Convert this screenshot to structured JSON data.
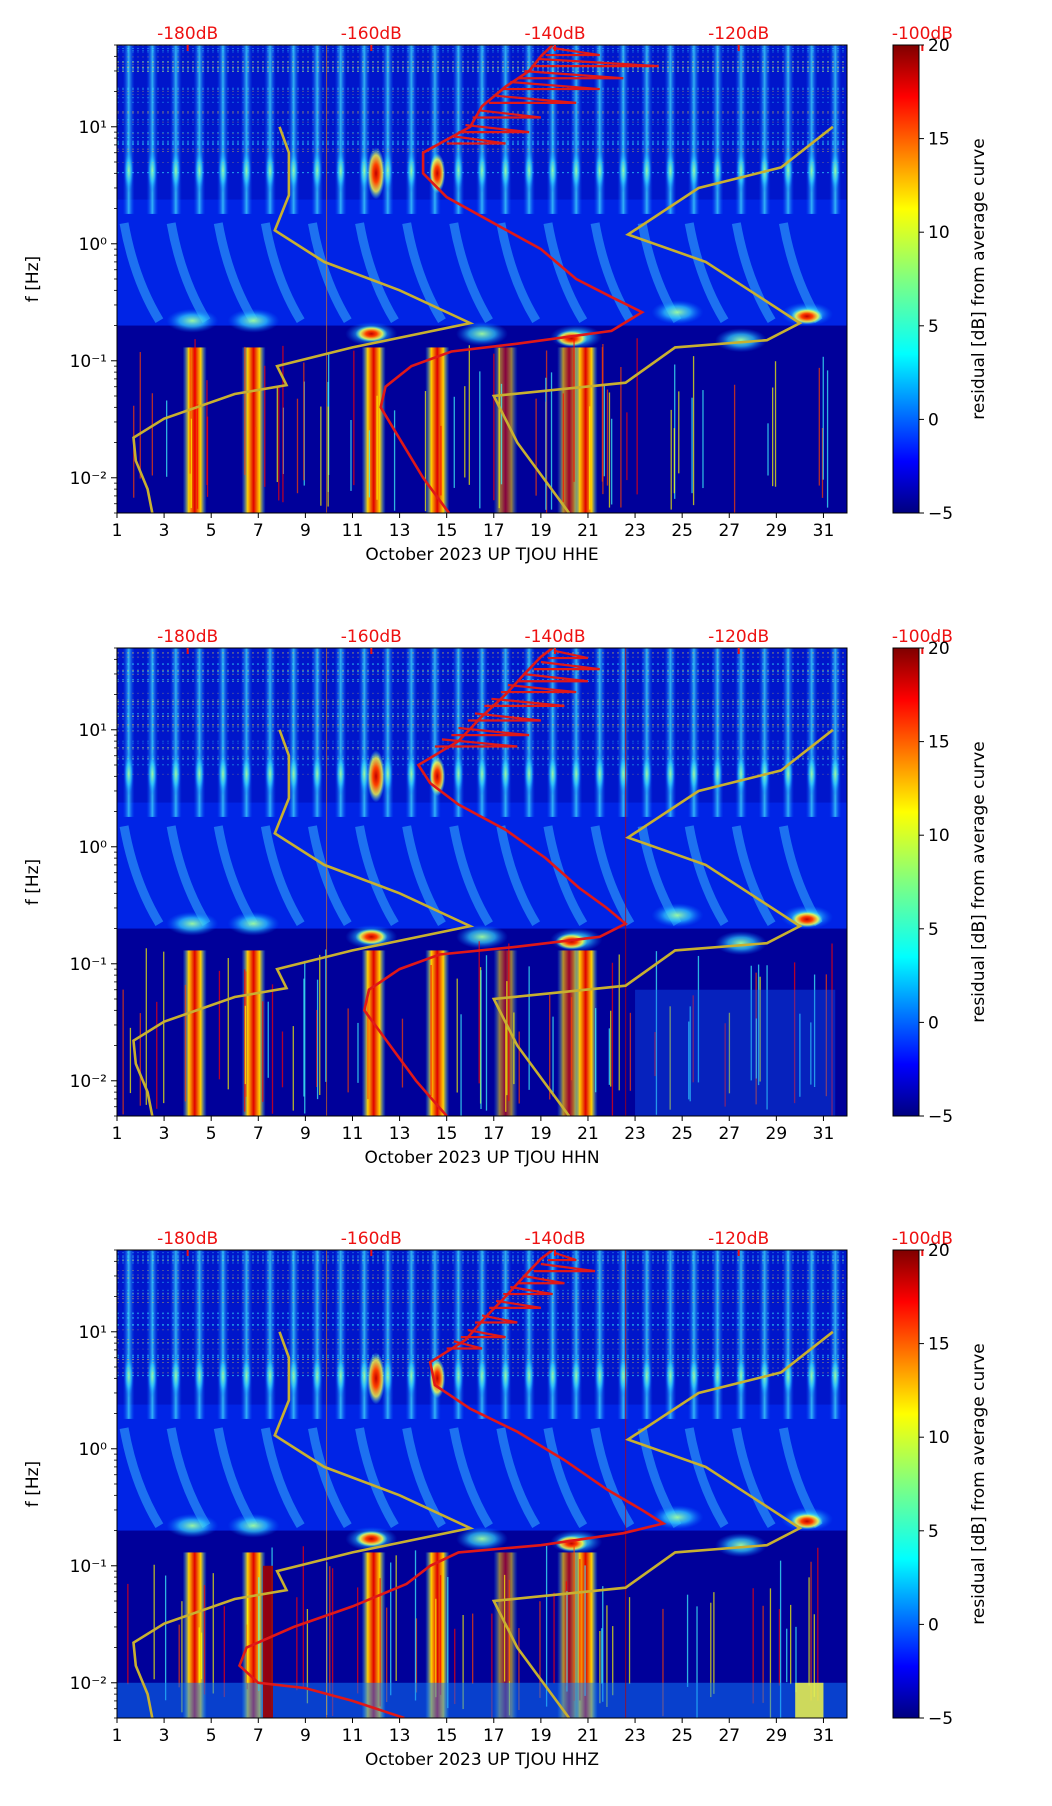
{
  "colors": {
    "db_label": "#ee1111",
    "peterson_curve": "#c8b030",
    "average_curve": "#e01818",
    "colormap": [
      "#00007f",
      "#0000ff",
      "#0080ff",
      "#00ffff",
      "#80ff80",
      "#ffff00",
      "#ff8000",
      "#ff0000",
      "#7f0000"
    ]
  },
  "chart_data": [
    {
      "type": "heatmap",
      "title": "",
      "xlabel": "October 2023 UP TJOU  HHE",
      "ylabel": "f [Hz]",
      "colorbar_label": "residual [dB] from average curve",
      "x_ticks": [
        "1",
        "3",
        "5",
        "7",
        "9",
        "11",
        "13",
        "15",
        "17",
        "19",
        "21",
        "23",
        "25",
        "27",
        "29",
        "31"
      ],
      "y_ticks": [
        "10⁻²",
        "10⁻¹",
        "10⁰",
        "10¹"
      ],
      "colorbar_ticks": [
        "20",
        "15",
        "10",
        "5",
        "0",
        "−5"
      ],
      "db_labels": [
        "-180dB",
        "-160dB",
        "-140dB",
        "-120dB",
        "-100dB"
      ],
      "xlim": [
        1,
        32
      ],
      "ylim": [
        0.005,
        50
      ],
      "clim": [
        -5,
        20
      ],
      "peterson_curve": [
        [
          2.5,
          0.005
        ],
        [
          2.3,
          0.008
        ],
        [
          1.8,
          0.014
        ],
        [
          1.7,
          0.022
        ],
        [
          3.0,
          0.032
        ],
        [
          6.0,
          0.052
        ],
        [
          8.2,
          0.062
        ],
        [
          7.8,
          0.09
        ],
        [
          11.0,
          0.13
        ],
        [
          16.0,
          0.21
        ],
        [
          13.0,
          0.4
        ],
        [
          9.8,
          0.7
        ],
        [
          7.7,
          1.3
        ],
        [
          8.3,
          2.6
        ],
        [
          8.3,
          6.0
        ],
        [
          7.9,
          10.0
        ]
      ],
      "peterson_curve_right": [
        [
          20.2,
          0.005
        ],
        [
          18.0,
          0.02
        ],
        [
          17.0,
          0.05
        ],
        [
          22.6,
          0.065
        ],
        [
          24.7,
          0.13
        ],
        [
          28.6,
          0.15
        ],
        [
          30.0,
          0.21
        ],
        [
          26.0,
          0.7
        ],
        [
          22.7,
          1.2
        ],
        [
          25.7,
          3.0
        ],
        [
          29.2,
          4.5
        ],
        [
          31.4,
          10.0
        ]
      ],
      "average_curve": [
        [
          15.1,
          0.005
        ],
        [
          14.0,
          0.01
        ],
        [
          13.1,
          0.02
        ],
        [
          12.2,
          0.04
        ],
        [
          12.4,
          0.06
        ],
        [
          13.5,
          0.09
        ],
        [
          15.2,
          0.12
        ],
        [
          18.0,
          0.14
        ],
        [
          22.0,
          0.18
        ],
        [
          23.3,
          0.26
        ],
        [
          22.0,
          0.35
        ],
        [
          20.5,
          0.5
        ],
        [
          19.0,
          0.9
        ],
        [
          17.0,
          1.5
        ],
        [
          15.0,
          2.5
        ],
        [
          14.0,
          4.0
        ],
        [
          14.0,
          6.0
        ],
        [
          16.0,
          10.0
        ],
        [
          16.5,
          15.0
        ],
        [
          17.5,
          22.0
        ],
        [
          18.5,
          30.0
        ],
        [
          19.0,
          40.0
        ],
        [
          19.5,
          50.0
        ]
      ],
      "average_curve_spikes": [
        [
          15,
          7.2,
          17.5
        ],
        [
          15.5,
          9.0,
          18.5
        ],
        [
          16.1,
          12.0,
          19.0
        ],
        [
          16.8,
          16.0,
          20.5
        ],
        [
          17.4,
          21.0,
          21.5
        ],
        [
          18.0,
          26.0,
          22.5
        ],
        [
          18.6,
          33.0,
          24.0
        ],
        [
          19.2,
          41.0,
          21.5
        ]
      ]
    },
    {
      "type": "heatmap",
      "title": "",
      "xlabel": "October 2023 UP TJOU  HHN",
      "ylabel": "f [Hz]",
      "colorbar_label": "residual [dB] from average curve",
      "x_ticks": [
        "1",
        "3",
        "5",
        "7",
        "9",
        "11",
        "13",
        "15",
        "17",
        "19",
        "21",
        "23",
        "25",
        "27",
        "29",
        "31"
      ],
      "y_ticks": [
        "10⁻²",
        "10⁻¹",
        "10⁰",
        "10¹"
      ],
      "colorbar_ticks": [
        "20",
        "15",
        "10",
        "5",
        "0",
        "−5"
      ],
      "db_labels": [
        "-180dB",
        "-160dB",
        "-140dB",
        "-120dB",
        "-100dB"
      ],
      "xlim": [
        1,
        32
      ],
      "ylim": [
        0.005,
        50
      ],
      "clim": [
        -5,
        20
      ],
      "peterson_curve": [
        [
          2.5,
          0.005
        ],
        [
          2.3,
          0.008
        ],
        [
          1.8,
          0.014
        ],
        [
          1.7,
          0.022
        ],
        [
          3.0,
          0.032
        ],
        [
          6.0,
          0.052
        ],
        [
          8.2,
          0.062
        ],
        [
          7.8,
          0.09
        ],
        [
          11.0,
          0.13
        ],
        [
          16.0,
          0.21
        ],
        [
          13.0,
          0.4
        ],
        [
          9.8,
          0.7
        ],
        [
          7.7,
          1.3
        ],
        [
          8.3,
          2.6
        ],
        [
          8.3,
          6.0
        ],
        [
          7.9,
          10.0
        ]
      ],
      "peterson_curve_right": [
        [
          20.2,
          0.005
        ],
        [
          18.0,
          0.02
        ],
        [
          17.0,
          0.05
        ],
        [
          22.6,
          0.065
        ],
        [
          24.7,
          0.13
        ],
        [
          28.6,
          0.15
        ],
        [
          30.0,
          0.21
        ],
        [
          26.0,
          0.7
        ],
        [
          22.7,
          1.2
        ],
        [
          25.7,
          3.0
        ],
        [
          29.2,
          4.5
        ],
        [
          31.4,
          10.0
        ]
      ],
      "average_curve": [
        [
          15.0,
          0.005
        ],
        [
          13.7,
          0.01
        ],
        [
          12.6,
          0.02
        ],
        [
          11.5,
          0.04
        ],
        [
          11.7,
          0.06
        ],
        [
          13.0,
          0.09
        ],
        [
          14.7,
          0.12
        ],
        [
          18.0,
          0.14
        ],
        [
          21.5,
          0.17
        ],
        [
          22.6,
          0.22
        ],
        [
          21.8,
          0.3
        ],
        [
          20.6,
          0.45
        ],
        [
          19.2,
          0.8
        ],
        [
          17.5,
          1.4
        ],
        [
          15.5,
          2.3
        ],
        [
          14.3,
          3.5
        ],
        [
          13.8,
          5.0
        ],
        [
          15.5,
          8.0
        ],
        [
          16.5,
          13.0
        ],
        [
          17.5,
          20.0
        ],
        [
          18.3,
          30.0
        ],
        [
          19.0,
          42.0
        ],
        [
          19.5,
          50.0
        ]
      ],
      "average_curve_spikes": [
        [
          14.5,
          7.2,
          18.0
        ],
        [
          15.2,
          9.0,
          18.5
        ],
        [
          15.9,
          12.0,
          19.0
        ],
        [
          16.6,
          16.0,
          20.0
        ],
        [
          17.3,
          21.0,
          20.5
        ],
        [
          18.0,
          26.0,
          21.0
        ],
        [
          18.7,
          33.0,
          21.5
        ],
        [
          19.3,
          41.0,
          21.0
        ]
      ]
    },
    {
      "type": "heatmap",
      "title": "",
      "xlabel": "October 2023 UP TJOU  HHZ",
      "ylabel": "f [Hz]",
      "colorbar_label": "residual [dB] from average curve",
      "x_ticks": [
        "1",
        "3",
        "5",
        "7",
        "9",
        "11",
        "13",
        "15",
        "17",
        "19",
        "21",
        "23",
        "25",
        "27",
        "29",
        "31"
      ],
      "y_ticks": [
        "10⁻²",
        "10⁻¹",
        "10⁰",
        "10¹"
      ],
      "colorbar_ticks": [
        "20",
        "15",
        "10",
        "5",
        "0",
        "−5"
      ],
      "db_labels": [
        "-180dB",
        "-160dB",
        "-140dB",
        "-120dB",
        "-100dB"
      ],
      "xlim": [
        1,
        32
      ],
      "ylim": [
        0.005,
        50
      ],
      "clim": [
        -5,
        20
      ],
      "peterson_curve": [
        [
          2.5,
          0.005
        ],
        [
          2.3,
          0.008
        ],
        [
          1.8,
          0.014
        ],
        [
          1.7,
          0.022
        ],
        [
          3.0,
          0.032
        ],
        [
          6.0,
          0.052
        ],
        [
          8.2,
          0.062
        ],
        [
          7.8,
          0.09
        ],
        [
          11.0,
          0.13
        ],
        [
          16.0,
          0.21
        ],
        [
          13.0,
          0.4
        ],
        [
          9.8,
          0.7
        ],
        [
          7.7,
          1.3
        ],
        [
          8.3,
          2.6
        ],
        [
          8.3,
          6.0
        ],
        [
          7.9,
          10.0
        ]
      ],
      "peterson_curve_right": [
        [
          20.2,
          0.005
        ],
        [
          18.0,
          0.02
        ],
        [
          17.0,
          0.05
        ],
        [
          22.6,
          0.065
        ],
        [
          24.7,
          0.13
        ],
        [
          28.6,
          0.15
        ],
        [
          30.0,
          0.21
        ],
        [
          26.0,
          0.7
        ],
        [
          22.7,
          1.2
        ],
        [
          25.7,
          3.0
        ],
        [
          29.2,
          4.5
        ],
        [
          31.4,
          10.0
        ]
      ],
      "average_curve": [
        [
          13.2,
          0.005
        ],
        [
          11.0,
          0.007
        ],
        [
          9.0,
          0.009
        ],
        [
          7.0,
          0.01
        ],
        [
          6.2,
          0.014
        ],
        [
          6.5,
          0.02
        ],
        [
          8.5,
          0.03
        ],
        [
          11.0,
          0.045
        ],
        [
          13.3,
          0.07
        ],
        [
          14.3,
          0.1
        ],
        [
          15.5,
          0.13
        ],
        [
          19.0,
          0.15
        ],
        [
          22.5,
          0.19
        ],
        [
          24.2,
          0.23
        ],
        [
          23.3,
          0.3
        ],
        [
          21.8,
          0.45
        ],
        [
          20.0,
          0.8
        ],
        [
          18.0,
          1.4
        ],
        [
          16.0,
          2.2
        ],
        [
          14.5,
          3.5
        ],
        [
          14.3,
          5.5
        ],
        [
          15.8,
          8.5
        ],
        [
          16.6,
          13.0
        ],
        [
          17.5,
          20.0
        ],
        [
          18.3,
          30.0
        ],
        [
          19.0,
          42.0
        ],
        [
          19.5,
          50.0
        ]
      ],
      "average_curve_spikes": [
        [
          15.0,
          7.2,
          16.5
        ],
        [
          15.6,
          9.0,
          17.5
        ],
        [
          16.2,
          12.0,
          18.0
        ],
        [
          16.8,
          16.0,
          19.0
        ],
        [
          17.4,
          21.0,
          19.5
        ],
        [
          18.0,
          26.0,
          20.0
        ],
        [
          18.7,
          33.0,
          21.3
        ],
        [
          19.3,
          41.0,
          20.5
        ]
      ]
    }
  ]
}
